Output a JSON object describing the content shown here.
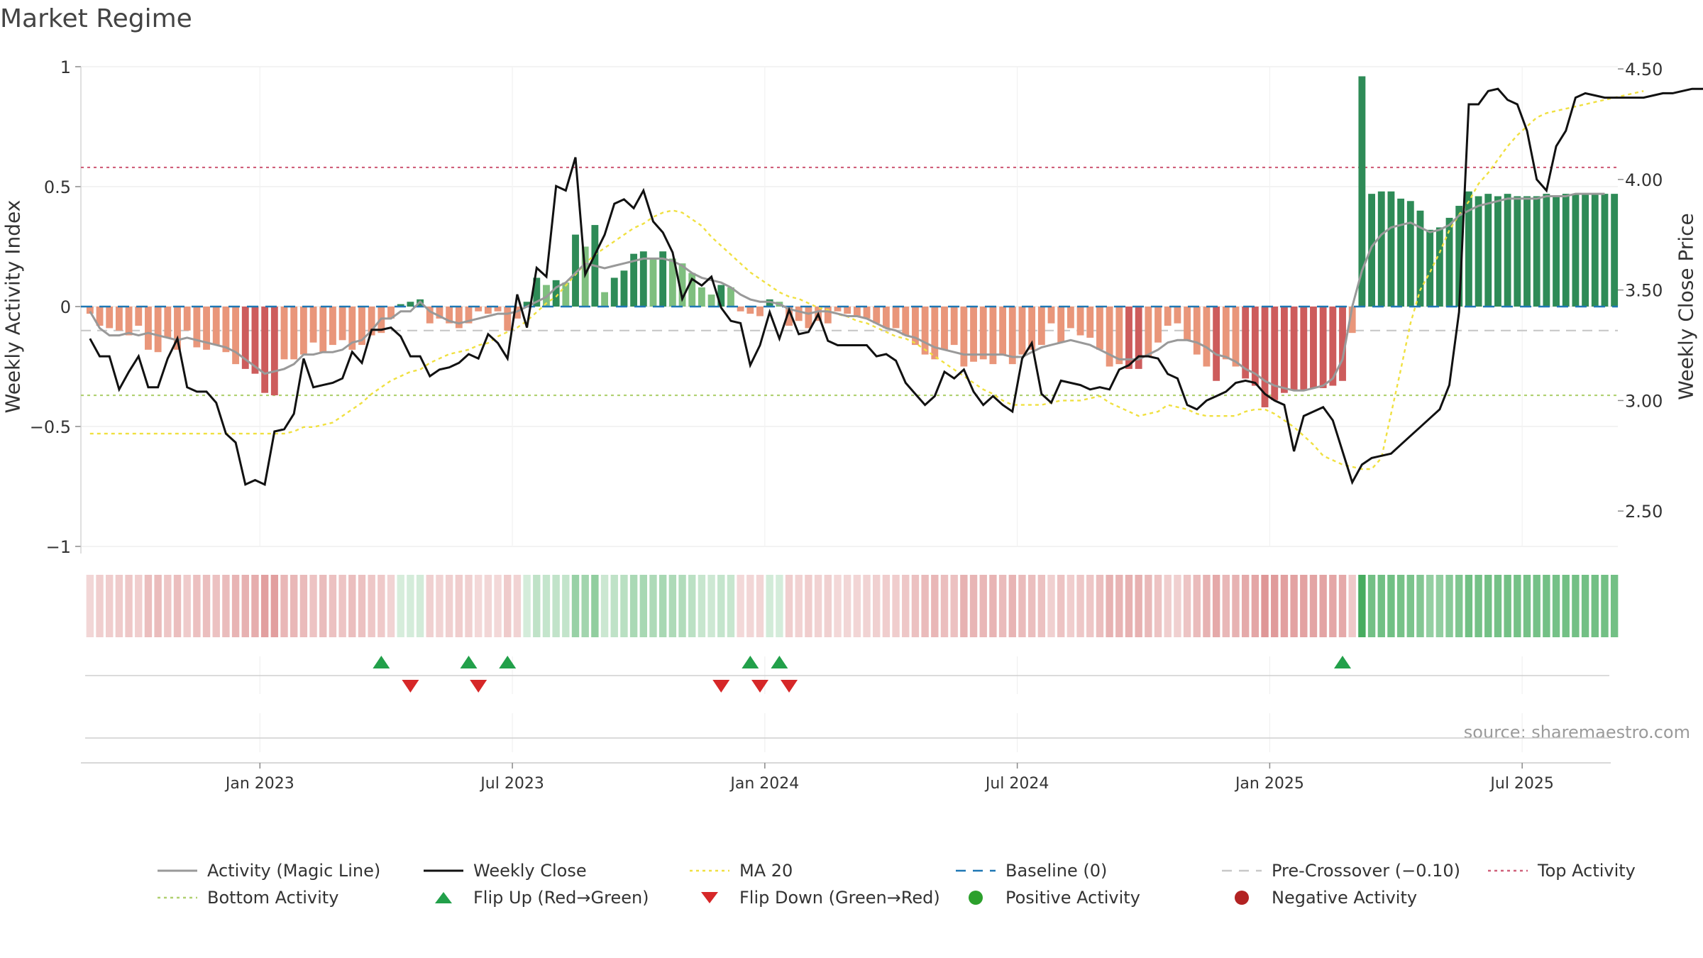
{
  "title": "Market Regime",
  "source_note": "source: sharemaestro.com",
  "colors": {
    "pos_dark": "#2e8b57",
    "pos_light": "#7fbf7f",
    "neg_dark": "#cd5c5c",
    "neg_light": "#e9967a",
    "magic": "#999999",
    "close": "#111111",
    "ma": "#f0e040",
    "baseline": "#1f77b4",
    "precross": "#c8c8c8",
    "top": "#d0607a",
    "bottom": "#b0d070",
    "flip_up": "#22a04a",
    "flip_down": "#d62728",
    "pos_marker": "#2ca02c",
    "neg_marker": "#b22222"
  },
  "chart_data": {
    "type": "bar",
    "left_axis": {
      "label": "Weekly Activity Index",
      "ylim": [
        -1,
        1
      ],
      "ticks": [
        1,
        0.5,
        0,
        -0.5,
        -1
      ],
      "tick_labels": [
        "1",
        "0.5",
        "0",
        "−0.5",
        "−1"
      ]
    },
    "right_axis": {
      "label": "Weekly Close Price",
      "ylim": [
        2.34,
        4.51
      ],
      "ticks": [
        4.5,
        4.0,
        3.5,
        3.0,
        2.5
      ],
      "tick_labels": [
        "4.50",
        "4.00",
        "3.50",
        "3.00",
        "2.50"
      ]
    },
    "x_ticks": [
      {
        "label": "Jan 2023",
        "week": 18
      },
      {
        "label": "Jul 2023",
        "week": 44
      },
      {
        "label": "Jan 2024",
        "week": 70
      },
      {
        "label": "Jul 2024",
        "week": 96
      },
      {
        "label": "Jan 2025",
        "week": 122
      },
      {
        "label": "Jul 2025",
        "week": 148
      }
    ],
    "top_activity": 0.58,
    "bottom_activity": -0.37,
    "pre_crossover": -0.1,
    "baseline": 0,
    "activity": [
      -0.03,
      -0.08,
      -0.09,
      -0.1,
      -0.12,
      -0.08,
      -0.18,
      -0.19,
      -0.13,
      -0.18,
      -0.1,
      -0.17,
      -0.18,
      -0.16,
      -0.19,
      -0.24,
      -0.26,
      -0.28,
      -0.36,
      -0.37,
      -0.22,
      -0.22,
      -0.2,
      -0.15,
      -0.19,
      -0.16,
      -0.14,
      -0.18,
      -0.16,
      -0.12,
      -0.11,
      -0.05,
      0.01,
      0.02,
      0.03,
      -0.07,
      -0.05,
      -0.07,
      -0.09,
      -0.07,
      -0.02,
      -0.03,
      -0.02,
      -0.1,
      -0.05,
      0.02,
      0.12,
      0.09,
      0.11,
      0.1,
      0.3,
      0.25,
      0.34,
      0.06,
      0.12,
      0.15,
      0.22,
      0.23,
      0.2,
      0.23,
      0.2,
      0.18,
      0.14,
      0.08,
      0.05,
      0.09,
      0.08,
      -0.02,
      -0.03,
      -0.04,
      0.03,
      0.02,
      -0.08,
      -0.06,
      -0.09,
      -0.06,
      -0.07,
      -0.02,
      -0.03,
      -0.04,
      -0.05,
      -0.07,
      -0.09,
      -0.09,
      -0.12,
      -0.16,
      -0.2,
      -0.22,
      -0.18,
      -0.16,
      -0.25,
      -0.23,
      -0.22,
      -0.24,
      -0.2,
      -0.24,
      -0.2,
      -0.18,
      -0.16,
      -0.07,
      -0.15,
      -0.09,
      -0.12,
      -0.13,
      -0.18,
      -0.25,
      -0.24,
      -0.26,
      -0.26,
      -0.21,
      -0.15,
      -0.08,
      -0.07,
      -0.14,
      -0.2,
      -0.25,
      -0.31,
      -0.22,
      -0.25,
      -0.3,
      -0.33,
      -0.42,
      -0.39,
      -0.36,
      -0.35,
      -0.35,
      -0.34,
      -0.34,
      -0.33,
      -0.31,
      -0.11,
      0.96,
      0.47,
      0.48,
      0.48,
      0.45,
      0.44,
      0.4,
      0.32,
      0.33,
      0.37,
      0.42,
      0.48,
      0.46,
      0.47,
      0.46,
      0.47,
      0.46,
      0.46,
      0.46,
      0.47,
      0.46,
      0.47,
      0.47,
      0.47,
      0.47,
      0.47,
      0.47
    ],
    "magic_line": [
      -0.02,
      -0.09,
      -0.12,
      -0.12,
      -0.11,
      -0.12,
      -0.11,
      -0.12,
      -0.13,
      -0.14,
      -0.13,
      -0.14,
      -0.15,
      -0.16,
      -0.17,
      -0.19,
      -0.22,
      -0.25,
      -0.28,
      -0.27,
      -0.26,
      -0.24,
      -0.2,
      -0.2,
      -0.19,
      -0.19,
      -0.18,
      -0.15,
      -0.14,
      -0.1,
      -0.05,
      -0.05,
      -0.02,
      -0.02,
      0.02,
      -0.02,
      -0.04,
      -0.06,
      -0.07,
      -0.06,
      -0.05,
      -0.04,
      -0.03,
      -0.03,
      -0.02,
      0.0,
      0.02,
      0.04,
      0.08,
      0.1,
      0.14,
      0.18,
      0.17,
      0.16,
      0.17,
      0.18,
      0.19,
      0.2,
      0.2,
      0.2,
      0.19,
      0.17,
      0.14,
      0.12,
      0.11,
      0.1,
      0.08,
      0.05,
      0.03,
      0.02,
      0.02,
      0.01,
      -0.01,
      -0.02,
      -0.03,
      -0.02,
      -0.02,
      -0.03,
      -0.04,
      -0.04,
      -0.05,
      -0.07,
      -0.09,
      -0.1,
      -0.12,
      -0.13,
      -0.15,
      -0.17,
      -0.18,
      -0.19,
      -0.2,
      -0.2,
      -0.2,
      -0.2,
      -0.2,
      -0.21,
      -0.21,
      -0.19,
      -0.17,
      -0.16,
      -0.15,
      -0.14,
      -0.15,
      -0.16,
      -0.18,
      -0.2,
      -0.22,
      -0.22,
      -0.22,
      -0.2,
      -0.18,
      -0.15,
      -0.14,
      -0.14,
      -0.15,
      -0.17,
      -0.2,
      -0.21,
      -0.23,
      -0.26,
      -0.28,
      -0.31,
      -0.33,
      -0.34,
      -0.35,
      -0.35,
      -0.34,
      -0.33,
      -0.3,
      -0.22,
      0.0,
      0.15,
      0.25,
      0.3,
      0.33,
      0.34,
      0.35,
      0.33,
      0.31,
      0.32,
      0.34,
      0.38,
      0.4,
      0.42,
      0.43,
      0.44,
      0.45,
      0.45,
      0.45,
      0.45,
      0.46,
      0.46,
      0.46,
      0.47,
      0.47,
      0.47,
      0.47
    ],
    "weekly_close": [
      3.28,
      3.2,
      3.2,
      3.05,
      3.13,
      3.2,
      3.06,
      3.06,
      3.19,
      3.28,
      3.06,
      3.04,
      3.04,
      2.99,
      2.85,
      2.81,
      2.62,
      2.64,
      2.62,
      2.86,
      2.87,
      2.94,
      3.19,
      3.06,
      3.07,
      3.08,
      3.1,
      3.22,
      3.17,
      3.32,
      3.32,
      3.33,
      3.29,
      3.2,
      3.2,
      3.11,
      3.14,
      3.15,
      3.17,
      3.21,
      3.19,
      3.3,
      3.26,
      3.19,
      3.48,
      3.33,
      3.6,
      3.56,
      3.97,
      3.95,
      4.1,
      3.57,
      3.66,
      3.75,
      3.89,
      3.91,
      3.87,
      3.95,
      3.81,
      3.76,
      3.67,
      3.46,
      3.55,
      3.52,
      3.56,
      3.42,
      3.36,
      3.35,
      3.16,
      3.25,
      3.4,
      3.28,
      3.41,
      3.3,
      3.31,
      3.39,
      3.27,
      3.25,
      3.25,
      3.25,
      3.25,
      3.2,
      3.21,
      3.18,
      3.08,
      3.03,
      2.98,
      3.02,
      3.13,
      3.1,
      3.14,
      3.04,
      2.98,
      3.02,
      2.98,
      2.95,
      3.19,
      3.26,
      3.03,
      2.99,
      3.09,
      3.08,
      3.07,
      3.05,
      3.06,
      3.05,
      3.14,
      3.16,
      3.2,
      3.2,
      3.19,
      3.12,
      3.1,
      2.98,
      2.96,
      3.0,
      3.02,
      3.04,
      3.08,
      3.09,
      3.08,
      3.03,
      3.0,
      2.98,
      2.77,
      2.93,
      2.95,
      2.97,
      2.91,
      2.77,
      2.63,
      2.71,
      2.74,
      2.75,
      2.76,
      2.8,
      2.84,
      2.88,
      2.92,
      2.96,
      3.07,
      3.4,
      4.34,
      4.34,
      4.4,
      4.41,
      4.36,
      4.34,
      4.22,
      4.0,
      3.95,
      4.15,
      4.22,
      4.37,
      4.39,
      4.38,
      4.37,
      4.37,
      4.37,
      4.37,
      4.37,
      4.38,
      4.39,
      4.39,
      4.4,
      4.41,
      4.41,
      4.41,
      4.42,
      4.42
    ],
    "ma20": [
      2.85,
      2.85,
      2.85,
      2.85,
      2.85,
      2.85,
      2.85,
      2.85,
      2.85,
      2.85,
      2.85,
      2.85,
      2.85,
      2.85,
      2.85,
      2.85,
      2.85,
      2.85,
      2.85,
      2.85,
      2.85,
      2.86,
      2.88,
      2.88,
      2.89,
      2.9,
      2.93,
      2.96,
      2.99,
      3.03,
      3.06,
      3.09,
      3.11,
      3.13,
      3.14,
      3.17,
      3.19,
      3.21,
      3.22,
      3.23,
      3.25,
      3.26,
      3.29,
      3.31,
      3.33,
      3.36,
      3.4,
      3.44,
      3.47,
      3.52,
      3.57,
      3.62,
      3.66,
      3.69,
      3.72,
      3.75,
      3.78,
      3.8,
      3.83,
      3.85,
      3.86,
      3.85,
      3.82,
      3.79,
      3.74,
      3.7,
      3.66,
      3.62,
      3.58,
      3.55,
      3.52,
      3.49,
      3.47,
      3.46,
      3.44,
      3.42,
      3.41,
      3.39,
      3.38,
      3.36,
      3.35,
      3.33,
      3.31,
      3.29,
      3.28,
      3.26,
      3.23,
      3.2,
      3.17,
      3.14,
      3.11,
      3.08,
      3.05,
      3.03,
      3.0,
      2.98,
      2.98,
      2.98,
      2.98,
      2.99,
      3.0,
      3.0,
      3.0,
      3.01,
      3.02,
      2.99,
      2.97,
      2.95,
      2.93,
      2.94,
      2.95,
      2.98,
      2.97,
      2.96,
      2.94,
      2.93,
      2.93,
      2.93,
      2.93,
      2.95,
      2.96,
      2.96,
      2.94,
      2.91,
      2.88,
      2.84,
      2.8,
      2.75,
      2.73,
      2.71,
      2.7,
      2.69,
      2.69,
      2.74,
      2.94,
      3.14,
      3.35,
      3.5,
      3.58,
      3.67,
      3.77,
      3.84,
      3.9,
      3.98,
      4.03,
      4.09,
      4.15,
      4.2,
      4.24,
      4.28,
      4.3,
      4.31,
      4.32,
      4.33,
      4.34,
      4.35,
      4.36,
      4.37,
      4.38,
      4.39,
      4.4
    ],
    "flip_up_weeks": [
      30,
      39,
      43,
      68,
      71,
      129
    ],
    "flip_down_weeks": [
      33,
      40,
      65,
      69,
      72
    ]
  },
  "legend": [
    {
      "label": "Activity (Magic Line)",
      "kind": "line-solid",
      "color": "#999999"
    },
    {
      "label": "Weekly Close",
      "kind": "line-solid",
      "color": "#111111"
    },
    {
      "label": "MA 20",
      "kind": "line-dotted",
      "color": "#f0e040"
    },
    {
      "label": "Baseline (0)",
      "kind": "line-dashed",
      "color": "#1f77b4"
    },
    {
      "label": "Pre-Crossover (−0.10)",
      "kind": "line-dashed",
      "color": "#c8c8c8"
    },
    {
      "label": "Top Activity",
      "kind": "line-dotted",
      "color": "#d0607a"
    },
    {
      "label": "Bottom Activity",
      "kind": "line-dotted",
      "color": "#b0d070"
    },
    {
      "label": "Flip Up (Red→Green)",
      "kind": "tri-up",
      "color": "#22a04a"
    },
    {
      "label": "Flip Down (Green→Red)",
      "kind": "tri-down",
      "color": "#d62728"
    },
    {
      "label": "Positive Activity",
      "kind": "dot",
      "color": "#2ca02c"
    },
    {
      "label": "Negative Activity",
      "kind": "dot",
      "color": "#b22222"
    }
  ]
}
